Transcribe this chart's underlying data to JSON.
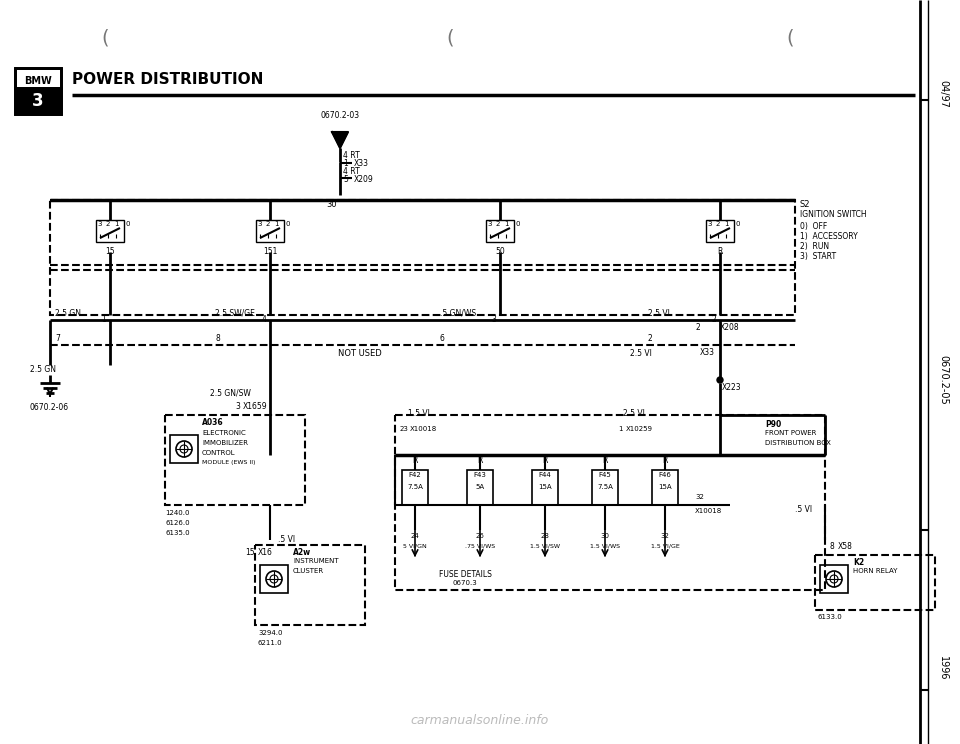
{
  "title": "POWER DISTRIBUTION",
  "background_color": "#ffffff",
  "line_color": "#000000",
  "right_labels": [
    "04/97",
    "0670.2-05",
    "1996"
  ],
  "fuses": [
    {
      "id": "F42",
      "rating": "7.5A",
      "pin": "24",
      "wire": "5 VI/GN"
    },
    {
      "id": "F43",
      "rating": "5A",
      "pin": "26",
      "wire": ".75 VI/WS"
    },
    {
      "id": "F44",
      "rating": "15A",
      "pin": "28",
      "wire": "1.5 VI/SW"
    },
    {
      "id": "F45",
      "rating": "7.5A",
      "pin": "30",
      "wire": "1.5 VI/WS"
    },
    {
      "id": "F46",
      "rating": "15A",
      "pin": "32",
      "wire": "1.5 VI/GE"
    }
  ]
}
